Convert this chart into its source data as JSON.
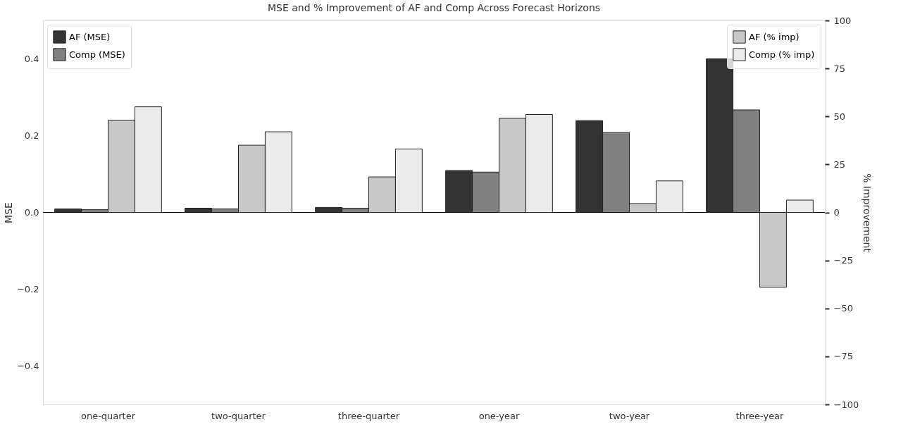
{
  "chart_data": {
    "type": "bar",
    "title": "MSE and % Improvement of AF and Comp Across Forecast Horizons",
    "ylabel": "MSE",
    "y2label": "% Improvement",
    "categories": [
      "one-quarter",
      "two-quarter",
      "three-quarter",
      "one-year",
      "two-year",
      "three-year"
    ],
    "series": [
      {
        "name": "AF (MSE)",
        "color": "#333333",
        "values": [
          0.009,
          0.011,
          0.013,
          0.109,
          0.239,
          0.4
        ]
      },
      {
        "name": "Comp (MSE)",
        "color": "#808080",
        "values": [
          0.007,
          0.009,
          0.011,
          0.105,
          0.208,
          0.267
        ]
      },
      {
        "name": "AF (% imp)",
        "color": "#c8c8c8",
        "axis": "y2",
        "values": [
          48,
          35,
          18.5,
          49,
          4.6,
          -39
        ]
      },
      {
        "name": "Comp (% imp)",
        "color": "#ebebeb",
        "axis": "y2",
        "values": [
          55,
          42,
          33,
          51,
          16.4,
          6.4
        ]
      }
    ],
    "ylim": [
      -0.5,
      0.5
    ],
    "yticks": [
      {
        "value": -0.4,
        "label": "−0.4"
      },
      {
        "value": -0.2,
        "label": "−0.2"
      },
      {
        "value": 0,
        "label": "0.0"
      },
      {
        "value": 0.2,
        "label": "0.2"
      },
      {
        "value": 0.4,
        "label": "0.4"
      }
    ],
    "y2lim": [
      -100,
      100
    ],
    "y2ticks": [
      {
        "value": -100,
        "label": "−100"
      },
      {
        "value": -75,
        "label": "−75"
      },
      {
        "value": -50,
        "label": "−50"
      },
      {
        "value": -25,
        "label": "−25"
      },
      0,
      25,
      50,
      75,
      100
    ],
    "ref_lines": [
      {
        "axis": "y",
        "value": 0,
        "color": "#000000"
      }
    ],
    "grid": false,
    "legend": "top"
  }
}
